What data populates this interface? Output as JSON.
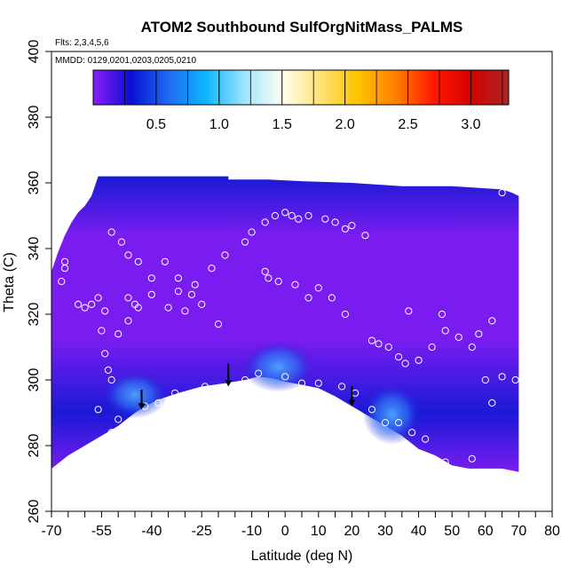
{
  "chart_data": {
    "type": "heatmap",
    "title": "ATOM2 Southbound SulfOrgNitMass_PALMS",
    "flights_note": "Flts: 2,3,4,5,6",
    "dates_note": "MMDD: 0129,0201,0203,0205,0210",
    "xlabel": "Latitude (deg N)",
    "ylabel": "Theta (C)",
    "xlim": [
      -70,
      80
    ],
    "ylim": [
      260,
      400
    ],
    "x_ticks": [
      -70,
      -55,
      -40,
      -25,
      -10,
      0,
      10,
      20,
      30,
      40,
      50,
      60,
      70,
      80
    ],
    "x_minor_ticks": [
      -65,
      -60,
      -50,
      -45,
      -35,
      -30,
      -20,
      -15,
      -5,
      5,
      15,
      25,
      35,
      45,
      55,
      65,
      75
    ],
    "y_ticks": [
      260,
      280,
      300,
      320,
      340,
      360,
      380,
      400
    ],
    "colorbar": {
      "range": [
        0,
        3.3
      ],
      "ticks": [
        0.5,
        1.0,
        1.5,
        2.0,
        2.5,
        3.0
      ],
      "tick_labels": [
        "0.5",
        "1.0",
        "1.5",
        "2.0",
        "2.5",
        "3.0"
      ],
      "colors": [
        "#8a1df5",
        "#0a0fd4",
        "#1f6cf0",
        "#0fb7ff",
        "#9fe3ff",
        "#fffff0",
        "#ffe27a",
        "#ffc400",
        "#ff8000",
        "#ff1a00",
        "#d60000",
        "#a62828"
      ]
    },
    "colors": {
      "low": "#7a1cf0",
      "mid": "#1a1ad6",
      "high": "#3b8cf6",
      "marker": "#ffffff",
      "arrow": "#000000"
    },
    "ground_profile": [
      [
        -70,
        273
      ],
      [
        -65,
        277
      ],
      [
        -60,
        280
      ],
      [
        -55,
        283
      ],
      [
        -50,
        286
      ],
      [
        -45,
        290
      ],
      [
        -42,
        292
      ],
      [
        -38,
        294
      ],
      [
        -32,
        296
      ],
      [
        -25,
        298
      ],
      [
        -18,
        299
      ],
      [
        -12,
        300
      ],
      [
        -8,
        301
      ],
      [
        -4,
        300.5
      ],
      [
        0,
        299.5
      ],
      [
        5,
        298.5
      ],
      [
        10,
        297.5
      ],
      [
        15,
        295
      ],
      [
        20,
        292
      ],
      [
        25,
        289
      ],
      [
        30,
        286
      ],
      [
        35,
        283
      ],
      [
        40,
        279
      ],
      [
        45,
        277
      ],
      [
        50,
        274
      ],
      [
        55,
        273
      ],
      [
        60,
        273
      ],
      [
        65,
        273
      ],
      [
        70,
        272
      ]
    ],
    "top_profile": [
      [
        -70,
        333
      ],
      [
        -68,
        339
      ],
      [
        -66,
        344
      ],
      [
        -64,
        348
      ],
      [
        -62,
        351
      ],
      [
        -60,
        353
      ],
      [
        -58,
        356
      ],
      [
        -57,
        359
      ],
      [
        -56,
        362
      ],
      [
        -50,
        362
      ],
      [
        -40,
        362
      ],
      [
        -30,
        362
      ],
      [
        -17,
        362
      ],
      [
        -17,
        361
      ],
      [
        -5,
        361
      ],
      [
        5,
        360.5
      ],
      [
        20,
        360
      ],
      [
        35,
        359
      ],
      [
        50,
        359
      ],
      [
        65,
        358
      ],
      [
        68,
        357
      ],
      [
        70,
        356
      ]
    ],
    "high_concentration_patches": [
      {
        "x": [
          -8,
          4
        ],
        "y": [
          299,
          309
        ],
        "value": 1.0
      },
      {
        "x": [
          28,
          36
        ],
        "y": [
          283,
          296
        ],
        "value": 1.2
      },
      {
        "x": [
          -50,
          -40
        ],
        "y": [
          291,
          300
        ],
        "value": 0.8
      }
    ],
    "sample_points": [
      [
        -67,
        330
      ],
      [
        -66,
        336
      ],
      [
        -66,
        334
      ],
      [
        -62,
        323
      ],
      [
        -60,
        322
      ],
      [
        -58,
        323
      ],
      [
        -56,
        325
      ],
      [
        -54,
        321
      ],
      [
        -55,
        315
      ],
      [
        -54,
        308
      ],
      [
        -53,
        303
      ],
      [
        -52,
        300
      ],
      [
        -56,
        291
      ],
      [
        -54,
        281
      ],
      [
        -53,
        282
      ],
      [
        -52,
        284
      ],
      [
        -50,
        288
      ],
      [
        -42,
        292
      ],
      [
        -38,
        293
      ],
      [
        -30,
        295
      ],
      [
        -20,
        297
      ],
      [
        -12,
        300
      ],
      [
        -8,
        302
      ],
      [
        0,
        301
      ],
      [
        10,
        299
      ],
      [
        17,
        298
      ],
      [
        21,
        296
      ],
      [
        26,
        291
      ],
      [
        30,
        287
      ],
      [
        34,
        287
      ],
      [
        38,
        284
      ],
      [
        42,
        282
      ],
      [
        48,
        275
      ],
      [
        56,
        276
      ],
      [
        62,
        293
      ],
      [
        69,
        300
      ],
      [
        65,
        357
      ],
      [
        -47,
        325
      ],
      [
        -44,
        322
      ],
      [
        -40,
        326
      ],
      [
        -35,
        322
      ],
      [
        -32,
        327
      ],
      [
        -30,
        321
      ],
      [
        -27,
        329
      ],
      [
        -22,
        334
      ],
      [
        -18,
        338
      ],
      [
        -12,
        342
      ],
      [
        -10,
        345
      ],
      [
        -6,
        348
      ],
      [
        -3,
        350
      ],
      [
        0,
        351
      ],
      [
        2,
        350
      ],
      [
        4,
        349
      ],
      [
        7,
        350
      ],
      [
        12,
        349
      ],
      [
        15,
        348
      ],
      [
        18,
        346
      ],
      [
        20,
        347
      ],
      [
        24,
        344
      ],
      [
        -6,
        333
      ],
      [
        -5,
        331
      ],
      [
        -2,
        330
      ],
      [
        3,
        329
      ],
      [
        7,
        325
      ],
      [
        10,
        328
      ],
      [
        14,
        325
      ],
      [
        18,
        320
      ],
      [
        -52,
        345
      ],
      [
        -49,
        342
      ],
      [
        -47,
        338
      ],
      [
        -44,
        336
      ],
      [
        -40,
        331
      ],
      [
        -36,
        336
      ],
      [
        -32,
        331
      ],
      [
        -28,
        326
      ],
      [
        -25,
        323
      ],
      [
        -20,
        317
      ],
      [
        -50,
        314
      ],
      [
        -47,
        318
      ],
      [
        -45,
        323
      ],
      [
        26,
        312
      ],
      [
        28,
        311
      ],
      [
        31,
        310
      ],
      [
        34,
        307
      ],
      [
        36,
        305
      ],
      [
        40,
        306
      ],
      [
        44,
        310
      ],
      [
        48,
        315
      ],
      [
        52,
        313
      ],
      [
        56,
        310
      ],
      [
        58,
        314
      ],
      [
        62,
        318
      ],
      [
        47,
        320
      ],
      [
        37,
        321
      ],
      [
        -33,
        296
      ],
      [
        -24,
        298
      ],
      [
        5,
        299
      ],
      [
        60,
        300
      ],
      [
        65,
        301
      ]
    ],
    "arrows": [
      {
        "x": -43,
        "y_from": 297,
        "y_to": 291
      },
      {
        "x": -17,
        "y_from": 305,
        "y_to": 298
      },
      {
        "x": 20,
        "y_from": 298,
        "y_to": 292
      }
    ]
  }
}
